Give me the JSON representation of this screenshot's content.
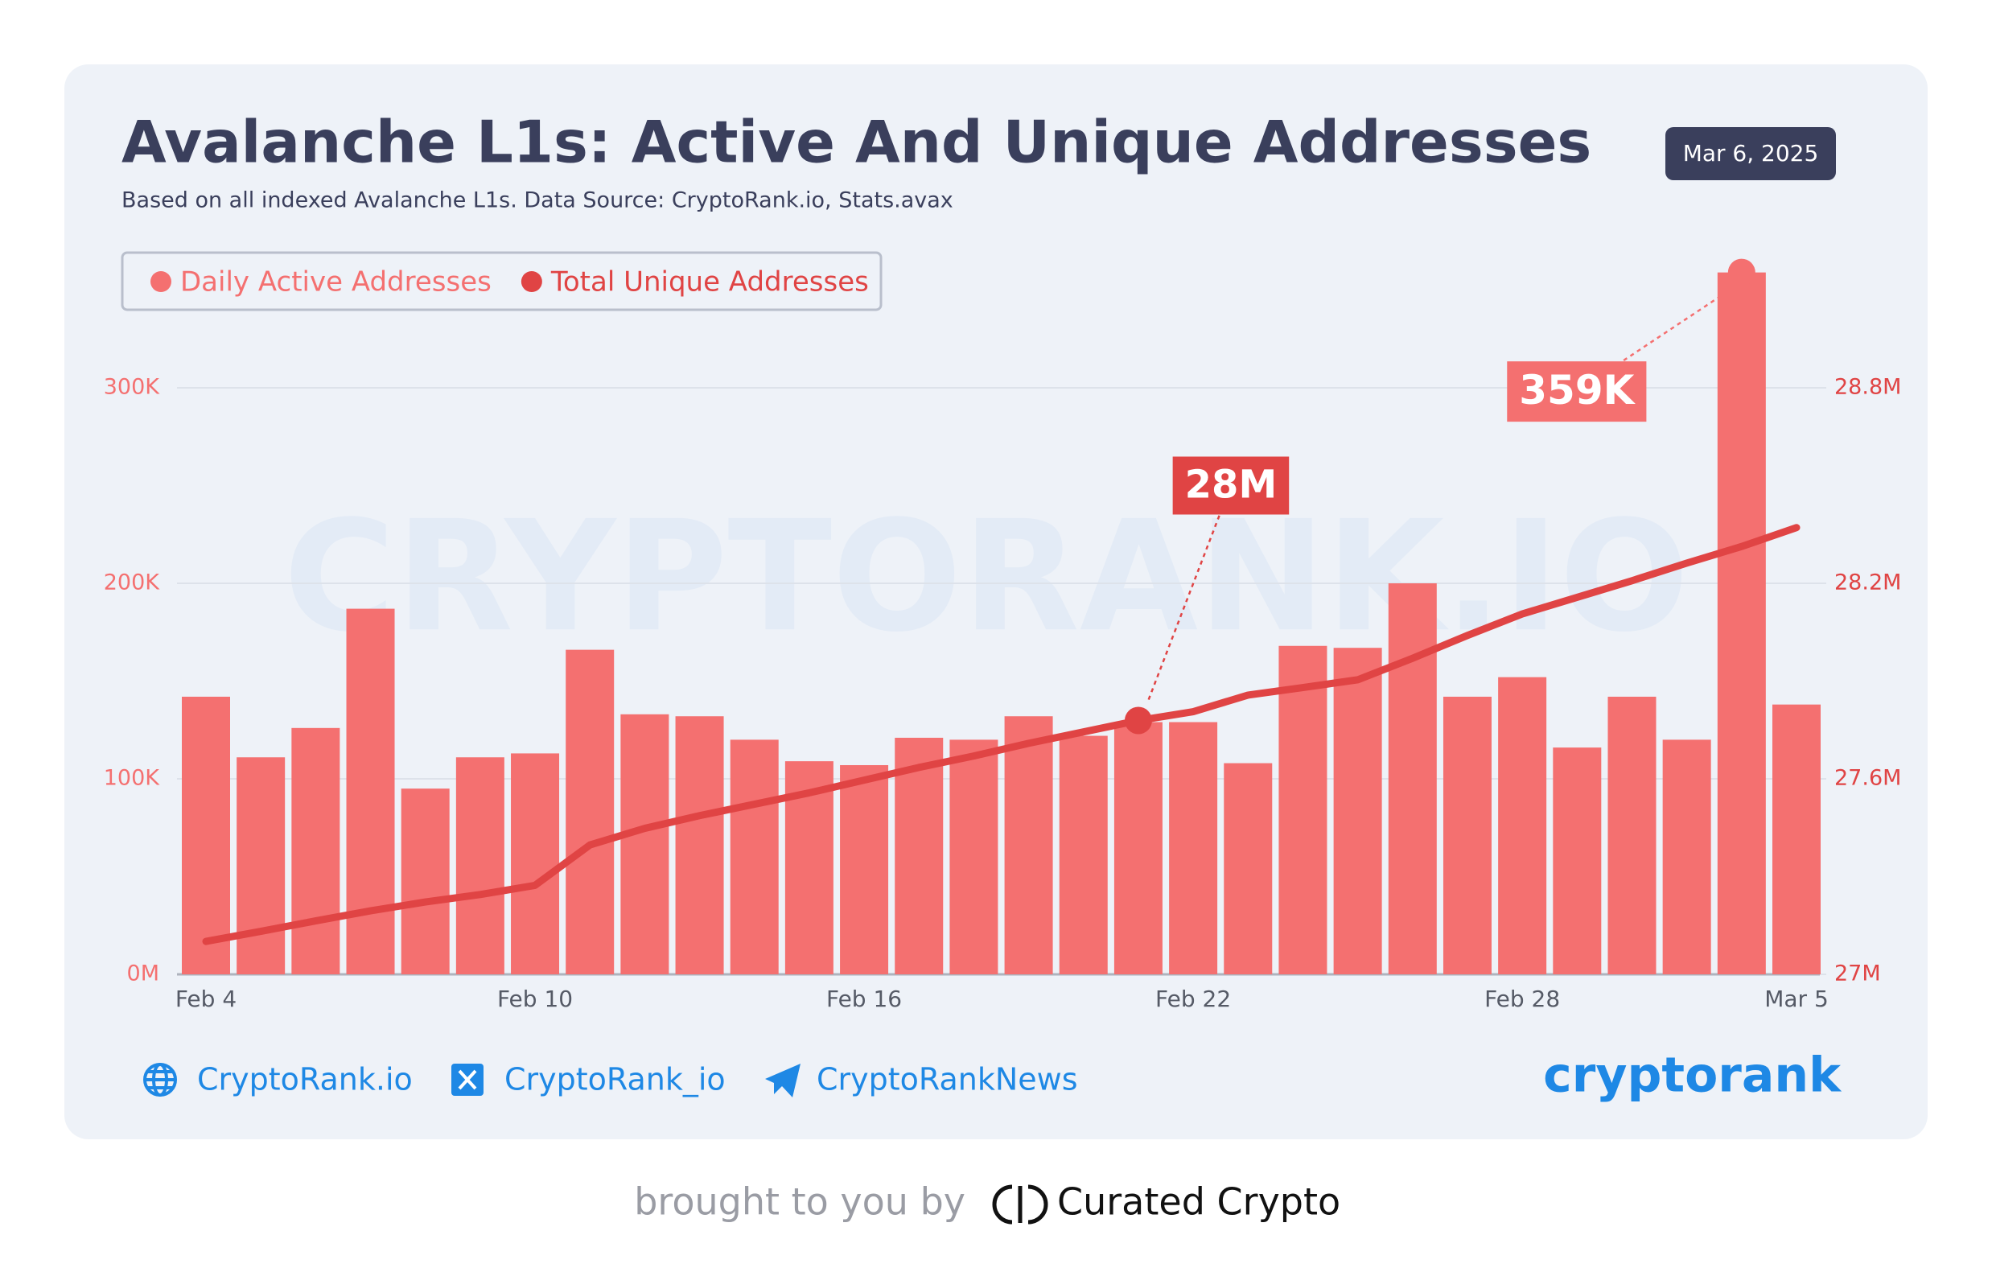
{
  "chart_data": {
    "type": "bar",
    "title": "Avalanche L1s: Active And Unique Addresses",
    "subtitle": "Based on all indexed Avalanche L1s. Data Source: CryptoRank.io, Stats.avax",
    "date": "Mar 6, 2025",
    "watermark": "CRYPTORANK.IO",
    "categories": [
      "Feb 4",
      null,
      null,
      null,
      null,
      null,
      "Feb 10",
      null,
      null,
      null,
      null,
      null,
      "Feb 16",
      null,
      null,
      null,
      null,
      null,
      "Feb 22",
      null,
      null,
      null,
      null,
      null,
      "Feb 28",
      null,
      null,
      null,
      null,
      "Mar 5"
    ],
    "series": [
      {
        "name": "Daily Active Addresses",
        "color": "#f47070",
        "type": "bar",
        "values": [
          142000,
          111000,
          126000,
          187000,
          95000,
          111000,
          113000,
          166000,
          133000,
          132000,
          120000,
          109000,
          107000,
          121000,
          120000,
          132000,
          122000,
          129000,
          129000,
          108000,
          168000,
          167000,
          200000,
          142000,
          152000,
          116000,
          142000,
          120000,
          359000,
          138000
        ],
        "value_labels": [
          null,
          null,
          null,
          null,
          null,
          null,
          null,
          null,
          null,
          null,
          null,
          null,
          null,
          null,
          null,
          null,
          null,
          null,
          null,
          null,
          null,
          null,
          null,
          null,
          null,
          null,
          null,
          null,
          "359K",
          null
        ]
      },
      {
        "name": "Total Unique Addresses",
        "color": "#e04444",
        "type": "line",
        "axis": "y2",
        "values": [
          27101000,
          27132000,
          27164000,
          27195000,
          27222000,
          27245000,
          27273000,
          27397000,
          27448000,
          27487000,
          27522000,
          27557000,
          27596000,
          27635000,
          27670000,
          27709000,
          27744000,
          27779000,
          27806000,
          27857000,
          27880000,
          27904000,
          27970000,
          28040000,
          28106000,
          28157000,
          28208000,
          28262000,
          28313000,
          28371000
        ],
        "value_labels": [
          null,
          null,
          null,
          null,
          null,
          null,
          null,
          null,
          null,
          null,
          null,
          null,
          null,
          null,
          null,
          null,
          null,
          "28M",
          null,
          null,
          null,
          null,
          null,
          null,
          null,
          null,
          null,
          null,
          null,
          null
        ]
      }
    ],
    "ylim": [
      0,
      300000
    ],
    "yticks": [
      {
        "value": 0,
        "label": "0M"
      },
      {
        "value": 100000,
        "label": "100K"
      },
      {
        "value": 200000,
        "label": "200K"
      },
      {
        "value": 300000,
        "label": "300K"
      }
    ],
    "y2lim": [
      27000000,
      28800000
    ],
    "y2ticks": [
      {
        "value": 27000000,
        "label": "27M"
      },
      {
        "value": 27600000,
        "label": "27.6M"
      },
      {
        "value": 28200000,
        "label": "28.2M"
      },
      {
        "value": 28800000,
        "label": "28.8M"
      }
    ],
    "grid": true,
    "legend": "top-left"
  },
  "footer": {
    "website": "CryptoRank.io",
    "x_handle": "CryptoRank_io",
    "telegram": "CryptoRankNews",
    "brand": "cryptorank",
    "credit": "brought to you by",
    "credit_brand": "Curated Crypto"
  }
}
